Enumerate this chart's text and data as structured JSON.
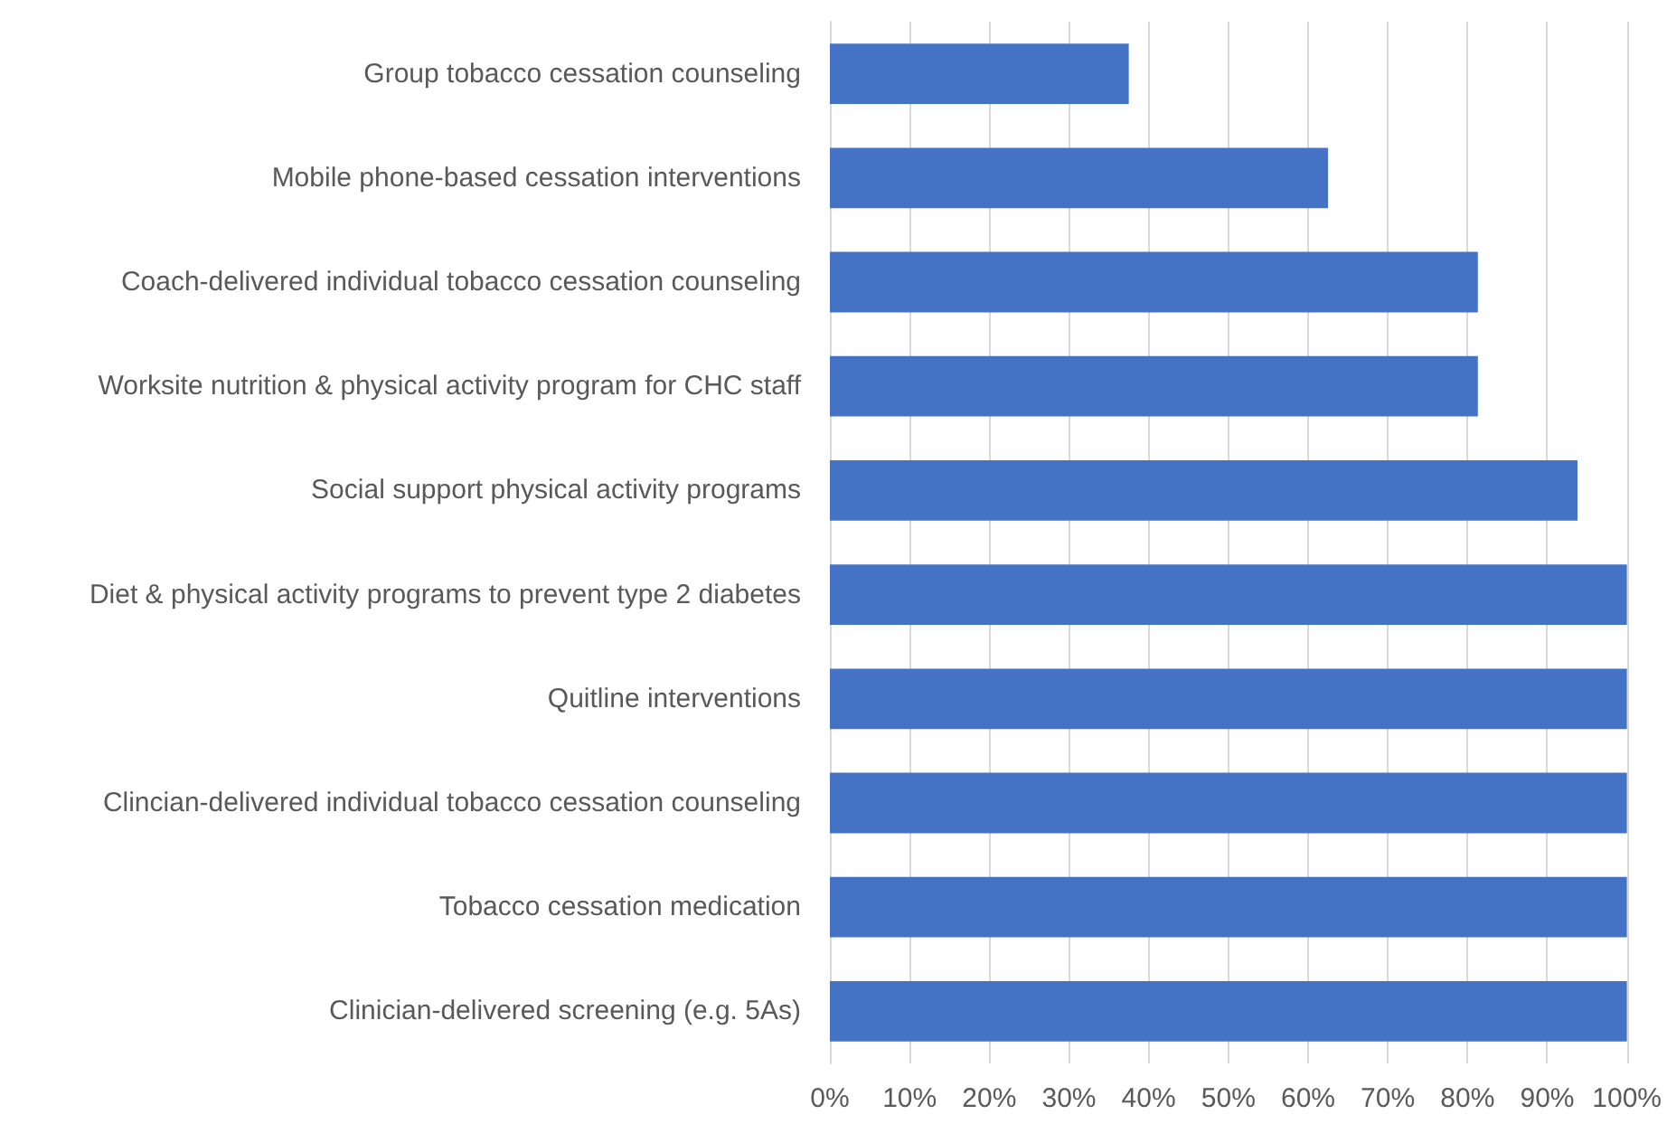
{
  "chart_data": {
    "type": "bar",
    "orientation": "horizontal",
    "categories": [
      "Group tobacco cessation counseling",
      "Mobile phone-based cessation interventions",
      "Coach-delivered individual tobacco cessation counseling",
      "Worksite nutrition & physical activity program for CHC staff",
      "Social support physical activity programs",
      "Diet & physical activity programs to prevent type 2 diabetes",
      "Quitline interventions",
      "Clincian-delivered individual tobacco cessation counseling",
      "Tobacco cessation medication",
      "Clinician-delivered screening (e.g. 5As)"
    ],
    "values": [
      37.5,
      62.5,
      81.3,
      81.3,
      93.8,
      100,
      100,
      100,
      100,
      100
    ],
    "color": "#4472c4",
    "xlim": [
      0,
      100
    ],
    "xticks": [
      {
        "value": 0,
        "label": "0%"
      },
      {
        "value": 10,
        "label": "10%"
      },
      {
        "value": 20,
        "label": "20%"
      },
      {
        "value": 30,
        "label": "30%"
      },
      {
        "value": 40,
        "label": "40%"
      },
      {
        "value": 50,
        "label": "50%"
      },
      {
        "value": 60,
        "label": "60%"
      },
      {
        "value": 70,
        "label": "70%"
      },
      {
        "value": 80,
        "label": "80%"
      },
      {
        "value": 90,
        "label": "90%"
      },
      {
        "value": 100,
        "label": "100%"
      }
    ],
    "grid": "x"
  }
}
